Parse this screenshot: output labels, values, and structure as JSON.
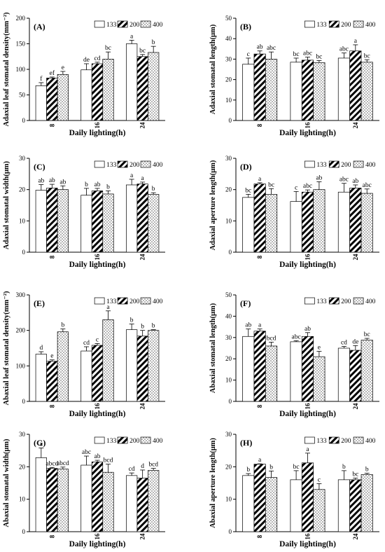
{
  "legend_labels": [
    "133",
    "200",
    "400"
  ],
  "chart_data": [
    {
      "type": "bar",
      "panel": "(A)",
      "ylabel": "Adaxial leaf stomatal density(mm⁻²)",
      "xlabel": "Daily lighting(h)",
      "categories": [
        "8",
        "16",
        "24"
      ],
      "ylim": [
        0,
        200
      ],
      "yticks": [
        0,
        50,
        100,
        150,
        200
      ],
      "series": [
        {
          "name": "133",
          "values": [
            68,
            99,
            150
          ],
          "errors": [
            6,
            12,
            7
          ],
          "letters": [
            "f",
            "de",
            "a"
          ]
        },
        {
          "name": "200",
          "values": [
            83,
            111,
            125
          ],
          "errors": [
            2,
            3,
            4
          ],
          "letters": [
            "ef",
            "cd",
            "bc"
          ]
        },
        {
          "name": "400",
          "values": [
            90,
            120,
            133
          ],
          "errors": [
            6,
            14,
            12
          ],
          "letters": [
            "e",
            "bc",
            "b"
          ]
        }
      ]
    },
    {
      "type": "bar",
      "panel": "(B)",
      "ylabel": "Adaxial stomatal length(μm)",
      "xlabel": "Daily lighting(h)",
      "categories": [
        "8",
        "16",
        "24"
      ],
      "ylim": [
        0,
        50
      ],
      "yticks": [
        0,
        10,
        20,
        30,
        40,
        50
      ],
      "series": [
        {
          "name": "133",
          "values": [
            27.5,
            28.5,
            30.5
          ],
          "errors": [
            3,
            2,
            2.5
          ],
          "letters": [
            "c",
            "bc",
            "abc"
          ]
        },
        {
          "name": "200",
          "values": [
            32.5,
            29.5,
            34
          ],
          "errors": [
            1.5,
            1.5,
            3
          ],
          "letters": [
            "ab",
            "abc",
            "a"
          ]
        },
        {
          "name": "400",
          "values": [
            30,
            28.3,
            28.5
          ],
          "errors": [
            3.5,
            1,
            1.2
          ],
          "letters": [
            "abc",
            "bc",
            "bc"
          ]
        }
      ]
    },
    {
      "type": "bar",
      "panel": "(C)",
      "ylabel": "Adaxial stomatal width(μm)",
      "xlabel": "Daily lighting(h)",
      "categories": [
        "8",
        "16",
        "24"
      ],
      "ylim": [
        0,
        30
      ],
      "yticks": [
        0,
        10,
        20,
        30
      ],
      "series": [
        {
          "name": "133",
          "values": [
            19.8,
            18.2,
            21.5
          ],
          "errors": [
            1.8,
            2.2,
            1.8
          ],
          "letters": [
            "ab",
            "b",
            "a"
          ]
        },
        {
          "name": "200",
          "values": [
            20.5,
            19.6,
            21.8
          ],
          "errors": [
            1.2,
            0.8,
            0.6
          ],
          "letters": [
            "ab",
            "ab",
            "a"
          ]
        },
        {
          "name": "400",
          "values": [
            20,
            18.6,
            18.5
          ],
          "errors": [
            1.2,
            1,
            0.5
          ],
          "letters": [
            "ab",
            "b",
            "b"
          ]
        }
      ]
    },
    {
      "type": "bar",
      "panel": "(D)",
      "ylabel": "Adaxial aperture length(μm)",
      "xlabel": "Daily lighting(h)",
      "categories": [
        "8",
        "16",
        "24"
      ],
      "ylim": [
        0,
        30
      ],
      "yticks": [
        0,
        10,
        20,
        30
      ],
      "series": [
        {
          "name": "133",
          "values": [
            17.5,
            16.2,
            19.2
          ],
          "errors": [
            1,
            3.2,
            2.8
          ],
          "letters": [
            "bc",
            "c",
            "abc"
          ]
        },
        {
          "name": "200",
          "values": [
            21.8,
            19.2,
            20.5
          ],
          "errors": [
            0.4,
            0.7,
            1
          ],
          "letters": [
            "a",
            "abc",
            "ab"
          ]
        },
        {
          "name": "400",
          "values": [
            18.5,
            20,
            18.8
          ],
          "errors": [
            1.8,
            2.5,
            1.4
          ],
          "letters": [
            "bc",
            "ab",
            "abc"
          ]
        }
      ]
    },
    {
      "type": "bar",
      "panel": "(E)",
      "ylabel": "Abaxial leaf stomatal density(mm⁻²)",
      "xlabel": "Daily lighting(h)",
      "categories": [
        "8",
        "16",
        "24"
      ],
      "ylim": [
        0,
        300
      ],
      "yticks": [
        0,
        100,
        200,
        300
      ],
      "series": [
        {
          "name": "133",
          "values": [
            133,
            142,
            202
          ],
          "errors": [
            7,
            12,
            16
          ],
          "letters": [
            "d",
            "cd",
            "b"
          ]
        },
        {
          "name": "200",
          "values": [
            113,
            158,
            184
          ],
          "errors": [
            4,
            5,
            16
          ],
          "letters": [
            "e",
            "c",
            "b"
          ]
        },
        {
          "name": "400",
          "values": [
            196,
            230,
            200
          ],
          "errors": [
            8,
            25,
            2
          ],
          "letters": [
            "b",
            "a",
            "b"
          ]
        }
      ]
    },
    {
      "type": "bar",
      "panel": "(F)",
      "ylabel": "Abaxial stomatal length(μm)",
      "xlabel": "Daily lighting(h)",
      "categories": [
        "8",
        "16",
        "24"
      ],
      "ylim": [
        0,
        50
      ],
      "yticks": [
        0,
        10,
        20,
        30,
        40,
        50
      ],
      "series": [
        {
          "name": "133",
          "values": [
            30.5,
            28,
            25
          ],
          "errors": [
            3.5,
            0.5,
            0.8
          ],
          "letters": [
            "ab",
            "abc",
            "cd"
          ]
        },
        {
          "name": "200",
          "values": [
            33,
            30.5,
            24
          ],
          "errors": [
            1,
            1.8,
            2.2
          ],
          "letters": [
            "a",
            "ab",
            "de"
          ]
        },
        {
          "name": "400",
          "values": [
            26,
            21,
            28.8
          ],
          "errors": [
            1.8,
            2.5,
            0.8
          ],
          "letters": [
            "bcd",
            "e",
            "bc"
          ]
        }
      ]
    },
    {
      "type": "bar",
      "panel": "(G)",
      "ylabel": "Abaxial stomatal width(μm)",
      "xlabel": "Daily lighting(h)",
      "categories": [
        "8",
        "16",
        "24"
      ],
      "ylim": [
        0,
        30
      ],
      "yticks": [
        0,
        10,
        20,
        30
      ],
      "series": [
        {
          "name": "133",
          "values": [
            22.8,
            20.5,
            17.3
          ],
          "errors": [
            3,
            2.8,
            0.8
          ],
          "letters": [
            "a",
            "abc",
            "cd"
          ]
        },
        {
          "name": "200",
          "values": [
            19.5,
            21.5,
            16.5
          ],
          "errors": [
            0.3,
            0.5,
            2.5
          ],
          "letters": [
            "abcd",
            "ab",
            "d"
          ]
        },
        {
          "name": "400",
          "values": [
            19.3,
            18.3,
            18.9
          ],
          "errors": [
            0.6,
            2.5,
            0.6
          ],
          "letters": [
            "abcd",
            "bcd",
            "bcd"
          ]
        }
      ]
    },
    {
      "type": "bar",
      "panel": "(H)",
      "ylabel": "Abaxial aperture length(μm)",
      "xlabel": "Daily lighting(h)",
      "categories": [
        "8",
        "16",
        "24"
      ],
      "ylim": [
        0,
        30
      ],
      "yticks": [
        0,
        10,
        20,
        30
      ],
      "series": [
        {
          "name": "133",
          "values": [
            17.3,
            16,
            16
          ],
          "errors": [
            0.6,
            2.8,
            2.8
          ],
          "letters": [
            "b",
            "bc",
            "b"
          ]
        },
        {
          "name": "200",
          "values": [
            20.8,
            21.2,
            16
          ],
          "errors": [
            0.1,
            3,
            0.5
          ],
          "letters": [
            "a",
            "a",
            "bc"
          ]
        },
        {
          "name": "400",
          "values": [
            16.7,
            13,
            17.6
          ],
          "errors": [
            2,
            1.8,
            0.4
          ],
          "letters": [
            "b",
            "c",
            "b"
          ]
        }
      ]
    }
  ]
}
